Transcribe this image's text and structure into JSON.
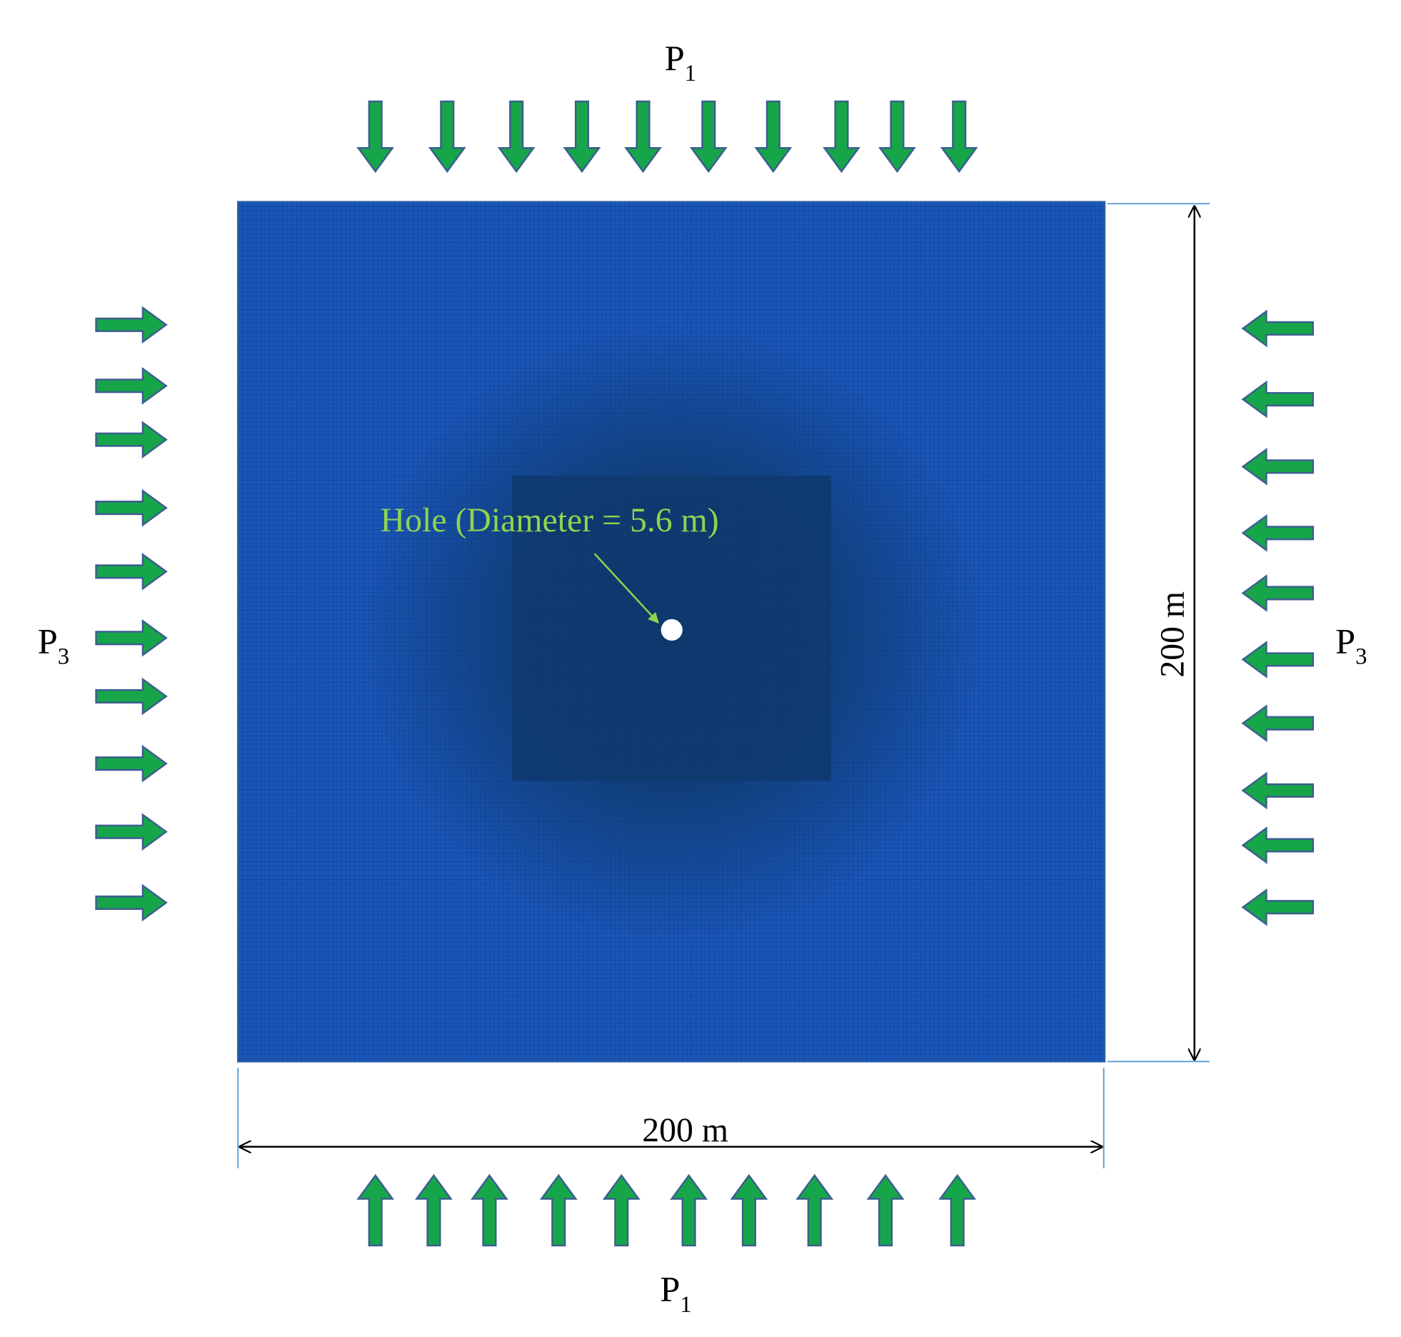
{
  "loads": {
    "top": {
      "base": "P",
      "sub": "1"
    },
    "bottom": {
      "base": "P",
      "sub": "1"
    },
    "left": {
      "base": "P",
      "sub": "3"
    },
    "right": {
      "base": "P",
      "sub": "3"
    }
  },
  "hole_label": "Hole (Diameter = 5.6 m)",
  "width_label": "200 m",
  "height_label": "200 m"
}
